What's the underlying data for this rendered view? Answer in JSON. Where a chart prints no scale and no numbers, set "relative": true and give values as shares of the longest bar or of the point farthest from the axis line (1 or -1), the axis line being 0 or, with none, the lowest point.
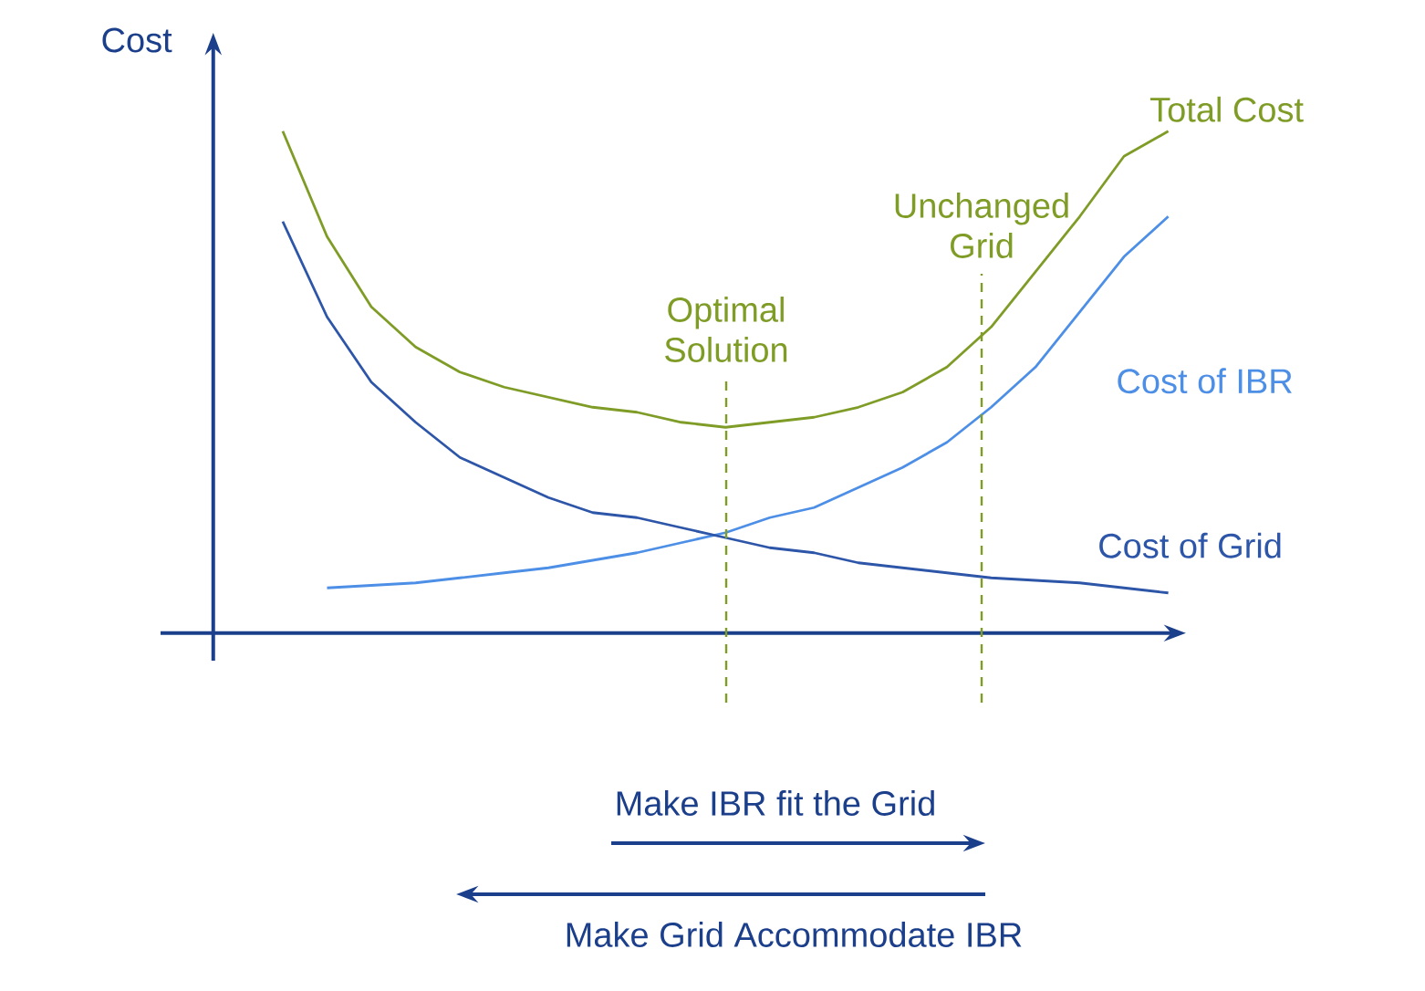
{
  "chart_data": {
    "type": "line",
    "relative": true,
    "ylabel": "Cost",
    "categories": [
      null,
      null,
      null,
      null,
      null,
      null,
      null,
      null,
      null,
      null,
      null,
      null,
      null,
      null,
      null,
      null,
      null,
      null,
      null,
      null,
      null
    ],
    "series": [
      {
        "name": "Total Cost",
        "color": "#7f9c27",
        "values": [
          1.0,
          0.79,
          0.65,
          0.57,
          0.52,
          0.49,
          0.47,
          0.45,
          0.44,
          0.42,
          0.41,
          0.42,
          0.43,
          0.45,
          0.48,
          0.53,
          0.61,
          0.72,
          0.83,
          0.95,
          1.0
        ]
      },
      {
        "name": "Cost of IBR",
        "color": "#4d8fe6",
        "values": [
          null,
          0.09,
          0.095,
          0.1,
          0.11,
          0.12,
          0.13,
          0.145,
          0.16,
          0.18,
          0.2,
          0.23,
          0.25,
          0.29,
          0.33,
          0.38,
          0.45,
          0.53,
          0.64,
          0.75,
          0.83
        ]
      },
      {
        "name": "Cost of Grid",
        "color": "#2d55a8",
        "values": [
          0.82,
          0.63,
          0.5,
          0.42,
          0.35,
          0.31,
          0.27,
          0.24,
          0.23,
          0.21,
          0.19,
          0.17,
          0.16,
          0.14,
          0.13,
          0.12,
          0.11,
          0.105,
          0.1,
          0.09,
          0.08
        ]
      }
    ],
    "annotations": [
      "Optimal Solution",
      "Unchanged Grid",
      "Make IBR fit the Grid",
      "Make Grid Accommodate IBR"
    ]
  }
}
